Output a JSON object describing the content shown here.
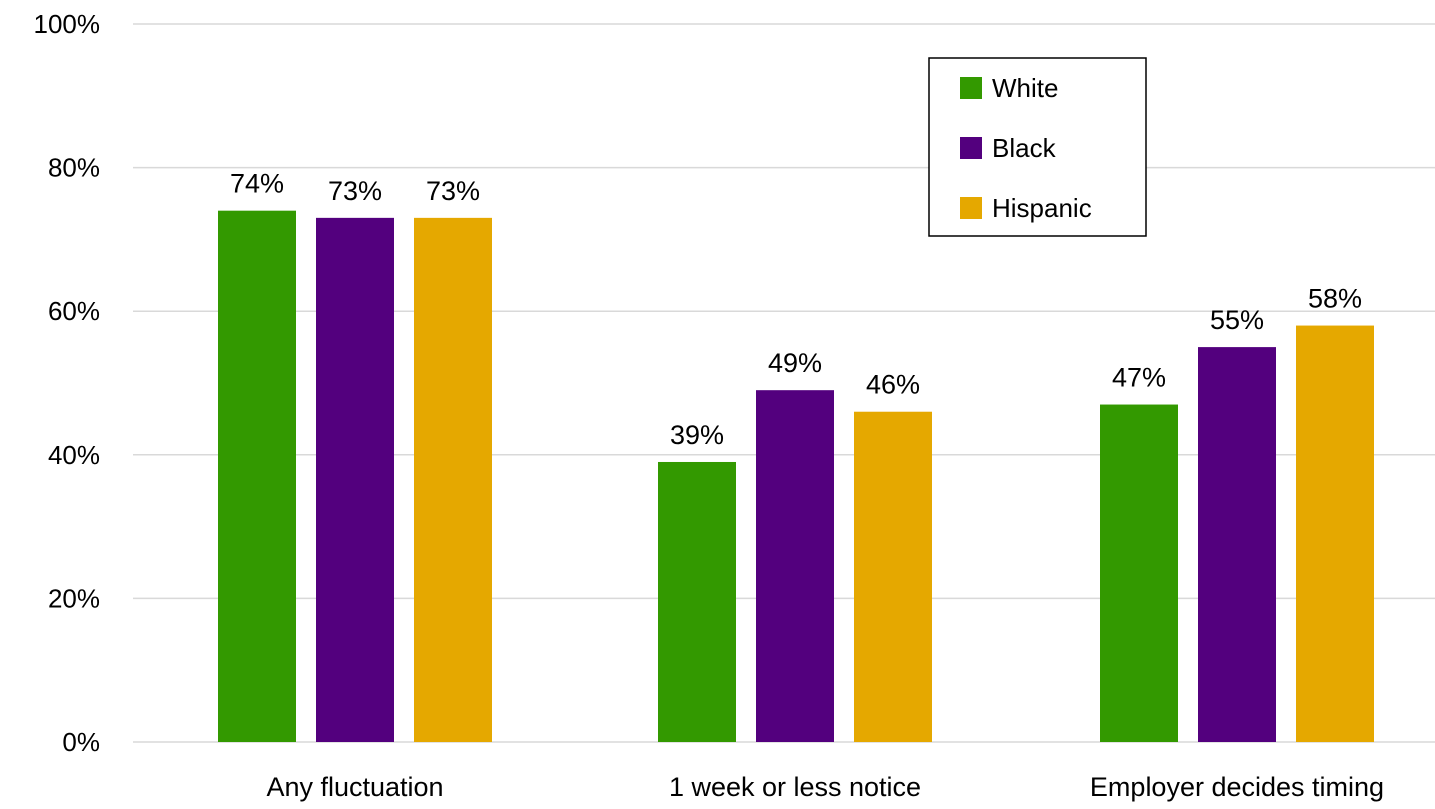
{
  "chart_data": {
    "type": "bar",
    "categories": [
      "Any fluctuation",
      "1 week or less notice",
      "Employer decides timing"
    ],
    "series": [
      {
        "name": "White",
        "values": [
          74,
          39,
          47
        ],
        "color": "#339900"
      },
      {
        "name": "Black",
        "values": [
          73,
          49,
          55
        ],
        "color": "#53007e"
      },
      {
        "name": "Hispanic",
        "values": [
          73,
          46,
          58
        ],
        "color": "#e5a800"
      }
    ],
    "data_labels": [
      [
        "74%",
        "39%",
        "47%"
      ],
      [
        "73%",
        "49%",
        "55%"
      ],
      [
        "73%",
        "46%",
        "58%"
      ]
    ],
    "y_ticks": [
      "0%",
      "20%",
      "40%",
      "60%",
      "80%",
      "100%"
    ],
    "ylim": [
      0,
      100
    ],
    "grid": true,
    "legend_position": "top-right"
  }
}
